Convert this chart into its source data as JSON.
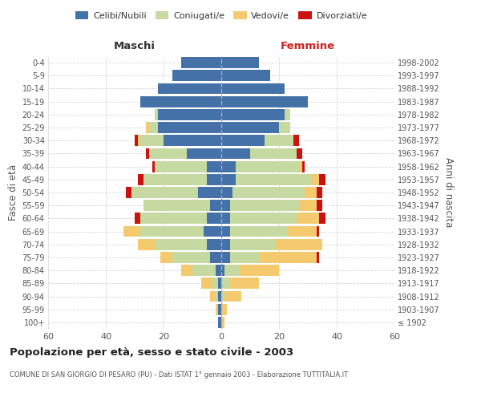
{
  "age_groups": [
    "100+",
    "95-99",
    "90-94",
    "85-89",
    "80-84",
    "75-79",
    "70-74",
    "65-69",
    "60-64",
    "55-59",
    "50-54",
    "45-49",
    "40-44",
    "35-39",
    "30-34",
    "25-29",
    "20-24",
    "15-19",
    "10-14",
    "5-9",
    "0-4"
  ],
  "birth_years": [
    "≤ 1902",
    "1903-1907",
    "1908-1912",
    "1913-1917",
    "1918-1922",
    "1923-1927",
    "1928-1932",
    "1933-1937",
    "1938-1942",
    "1943-1947",
    "1948-1952",
    "1953-1957",
    "1958-1962",
    "1963-1967",
    "1968-1972",
    "1973-1977",
    "1978-1982",
    "1983-1987",
    "1988-1992",
    "1993-1997",
    "1998-2002"
  ],
  "male_celibi": [
    1,
    1,
    1,
    1,
    2,
    4,
    5,
    6,
    5,
    4,
    8,
    5,
    5,
    12,
    20,
    22,
    22,
    28,
    22,
    17,
    14
  ],
  "male_coniugati": [
    0,
    0,
    1,
    2,
    8,
    13,
    18,
    22,
    23,
    23,
    23,
    22,
    18,
    13,
    8,
    3,
    1,
    0,
    0,
    0,
    0
  ],
  "male_vedovi": [
    0,
    1,
    2,
    4,
    4,
    4,
    6,
    6,
    0,
    0,
    0,
    0,
    0,
    0,
    1,
    1,
    0,
    0,
    0,
    0,
    0
  ],
  "male_divorziati": [
    0,
    0,
    0,
    0,
    0,
    0,
    0,
    0,
    2,
    0,
    2,
    2,
    1,
    1,
    1,
    0,
    0,
    0,
    0,
    0,
    0
  ],
  "female_celibi": [
    0,
    0,
    0,
    0,
    1,
    3,
    3,
    3,
    3,
    3,
    4,
    5,
    5,
    10,
    15,
    20,
    22,
    30,
    22,
    17,
    13
  ],
  "female_coniugati": [
    0,
    0,
    1,
    3,
    5,
    10,
    16,
    20,
    23,
    24,
    25,
    26,
    22,
    16,
    10,
    4,
    2,
    0,
    0,
    0,
    0
  ],
  "female_vedovi": [
    1,
    2,
    6,
    10,
    14,
    20,
    16,
    10,
    8,
    6,
    4,
    3,
    1,
    0,
    0,
    0,
    0,
    0,
    0,
    0,
    0
  ],
  "female_divorziati": [
    0,
    0,
    0,
    0,
    0,
    1,
    0,
    1,
    2,
    2,
    2,
    2,
    1,
    2,
    2,
    0,
    0,
    0,
    0,
    0,
    0
  ],
  "color_celibi": "#4472a8",
  "color_coniugati": "#c5d9a0",
  "color_vedovi": "#f5c96e",
  "color_divorziati": "#cc1111",
  "title": "Popolazione per età, sesso e stato civile - 2003",
  "subtitle": "COMUNE DI SAN GIORGIO DI PESARO (PU) - Dati ISTAT 1° gennaio 2003 - Elaborazione TUTTITALIA.IT",
  "xlabel_left": "Maschi",
  "xlabel_right": "Femmine",
  "ylabel_left": "Fasce di età",
  "ylabel_right": "Anni di nascita",
  "xlim": 60,
  "legend_labels": [
    "Celibi/Nubili",
    "Coniugati/e",
    "Vedovi/e",
    "Divorziati/e"
  ],
  "background_color": "#ffffff",
  "grid_color": "#cccccc"
}
